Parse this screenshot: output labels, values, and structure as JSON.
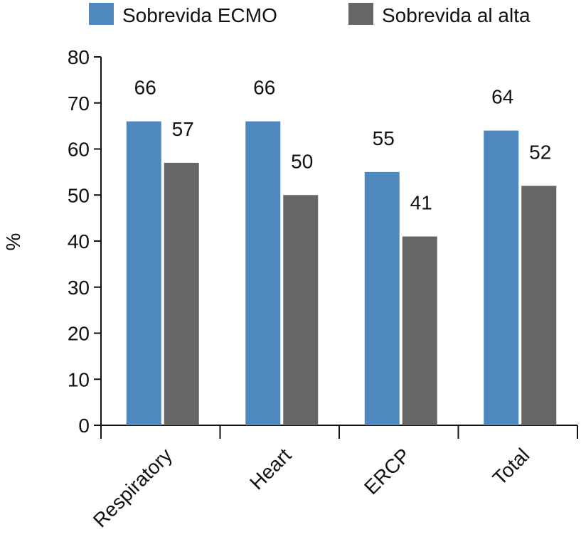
{
  "chart_data": {
    "type": "bar",
    "title": "",
    "xlabel": "",
    "ylabel": "%",
    "ylim": [
      0,
      80
    ],
    "yticks": [
      0,
      10,
      20,
      30,
      40,
      50,
      60,
      70,
      80
    ],
    "categories": [
      "Respiratory",
      "Heart",
      "ERCP",
      "Total"
    ],
    "series": [
      {
        "name": "Sobrevida ECMO",
        "color": "#4f87bf",
        "values": [
          66,
          66,
          55,
          64
        ]
      },
      {
        "name": "Sobrevida al alta",
        "color": "#666666",
        "values": [
          57,
          50,
          41,
          52
        ]
      }
    ],
    "legend_position": "top",
    "grid": false
  }
}
